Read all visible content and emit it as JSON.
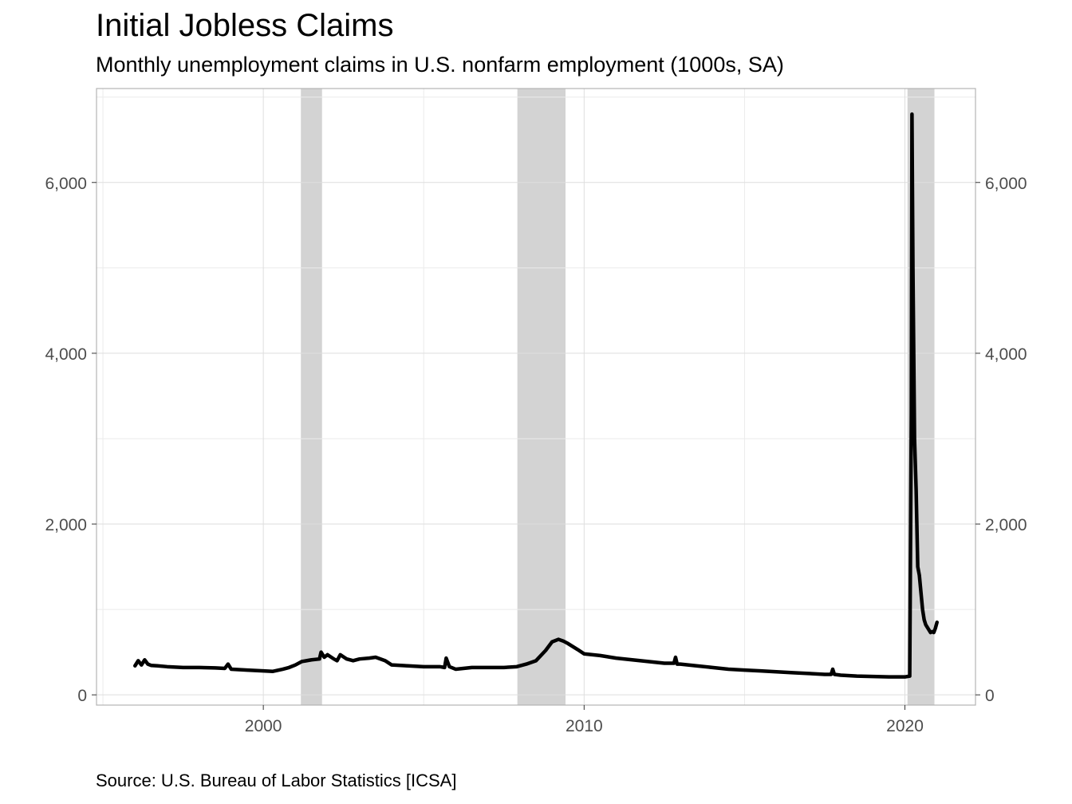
{
  "chart_data": {
    "type": "line",
    "title": "Initial Jobless Claims",
    "subtitle": "Monthly unemployment claims in U.S. nonfarm employment (1000s, SA)",
    "caption": "Source: U.S. Bureau of Labor Statistics [ICSA]",
    "xlabel": "",
    "ylabel": "",
    "xlim": [
      1994.8,
      2022.2
    ],
    "ylim": [
      -120,
      7100
    ],
    "x_ticks": [
      2000,
      2010,
      2020
    ],
    "x_tick_labels": [
      "2000",
      "2010",
      "2020"
    ],
    "x_minor_ticks": [
      1995,
      2005,
      2015
    ],
    "y_ticks": [
      0,
      2000,
      4000,
      6000
    ],
    "y_tick_labels": [
      "0",
      "2,000",
      "4,000",
      "6,000"
    ],
    "y_minor_ticks": [
      1000,
      3000,
      5000,
      7000
    ],
    "secondary_y_axis": true,
    "grid": true,
    "recessions": [
      {
        "start": 2001.17,
        "end": 2001.83
      },
      {
        "start": 2007.92,
        "end": 2009.42
      },
      {
        "start": 2020.08,
        "end": 2020.92
      }
    ],
    "series": [
      {
        "color": "#000000",
        "x": [
          1996.0,
          1996.1,
          1996.2,
          1996.3,
          1996.4,
          1996.5,
          1996.7,
          1997.0,
          1997.5,
          1998.0,
          1998.5,
          1998.8,
          1998.9,
          1999.0,
          1999.5,
          2000.0,
          2000.3,
          2000.6,
          2000.8,
          2001.0,
          2001.2,
          2001.5,
          2001.75,
          2001.8,
          2001.9,
          2002.0,
          2002.2,
          2002.3,
          2002.4,
          2002.6,
          2002.8,
          2003.0,
          2003.3,
          2003.5,
          2003.8,
          2004.0,
          2004.5,
          2005.0,
          2005.5,
          2005.65,
          2005.7,
          2005.8,
          2006.0,
          2006.5,
          2007.0,
          2007.5,
          2007.9,
          2008.2,
          2008.5,
          2008.8,
          2009.0,
          2009.2,
          2009.35,
          2009.5,
          2009.8,
          2010.0,
          2010.5,
          2011.0,
          2011.5,
          2012.0,
          2012.5,
          2012.8,
          2012.85,
          2012.9,
          2013.0,
          2013.5,
          2014.0,
          2014.5,
          2015.0,
          2015.5,
          2016.0,
          2016.5,
          2017.0,
          2017.5,
          2017.7,
          2017.75,
          2017.8,
          2018.0,
          2018.5,
          2019.0,
          2019.5,
          2020.0,
          2020.15,
          2020.2,
          2020.22,
          2020.25,
          2020.3,
          2020.35,
          2020.4,
          2020.45,
          2020.5,
          2020.55,
          2020.6,
          2020.65,
          2020.7,
          2020.75,
          2020.8,
          2020.85,
          2020.9,
          2020.95,
          2021.0
        ],
        "values": [
          340,
          400,
          350,
          410,
          360,
          345,
          340,
          330,
          320,
          320,
          315,
          310,
          360,
          300,
          290,
          280,
          275,
          300,
          320,
          350,
          390,
          410,
          420,
          500,
          440,
          470,
          420,
          400,
          470,
          420,
          400,
          420,
          430,
          440,
          400,
          350,
          340,
          330,
          330,
          320,
          430,
          330,
          300,
          320,
          320,
          320,
          330,
          360,
          400,
          520,
          620,
          650,
          630,
          600,
          530,
          480,
          460,
          430,
          410,
          390,
          370,
          370,
          440,
          360,
          360,
          340,
          320,
          300,
          290,
          280,
          270,
          260,
          250,
          240,
          240,
          300,
          240,
          230,
          220,
          215,
          210,
          210,
          220,
          3300,
          6800,
          5000,
          3000,
          2400,
          1500,
          1400,
          1200,
          1000,
          880,
          820,
          790,
          760,
          730,
          740,
          730,
          780,
          850
        ]
      }
    ]
  }
}
